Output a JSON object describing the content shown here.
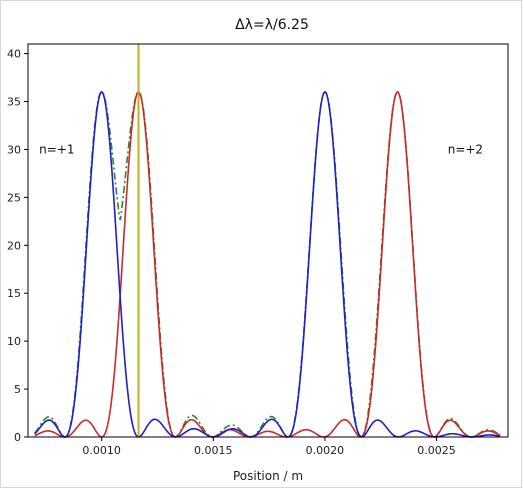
{
  "chart_data": {
    "type": "line",
    "title": "Δλ=λ/6.25",
    "xlabel": "Position / m",
    "ylabel": "",
    "xlim": [
      0.00067,
      0.00282
    ],
    "ylim": [
      0,
      41
    ],
    "xticks": [
      0.001,
      0.0015,
      0.002,
      0.0025
    ],
    "xtick_labels": [
      "0.0010",
      "0.0015",
      "0.0020",
      "0.0025"
    ],
    "yticks": [
      0,
      5,
      10,
      15,
      20,
      25,
      30,
      35,
      40
    ],
    "ytick_labels": [
      "0",
      "5",
      "10",
      "15",
      "20",
      "25",
      "30",
      "35",
      "40"
    ],
    "grid": false,
    "annotations": [
      {
        "text": "n=+1",
        "x": 0.00072,
        "y": 30
      },
      {
        "text": "n=+2",
        "x": 0.00255,
        "y": 30
      }
    ],
    "vertical_line": {
      "x": 0.001165,
      "color": "#bfb11a"
    },
    "series": [
      {
        "color": "#1f1fd0",
        "style": "solid",
        "peaks": [
          {
            "x": 0.001,
            "height": 36
          },
          {
            "x": 0.002,
            "height": 36
          }
        ],
        "width": 0.000165
      },
      {
        "color": "#cc2a2a",
        "style": "solid",
        "peaks": [
          {
            "x": 0.001165,
            "height": 36
          },
          {
            "x": 0.002325,
            "height": 36
          }
        ],
        "width": 0.000165
      },
      {
        "color": "#2a8a2a",
        "style": "dashdot",
        "sum_of": [
          0,
          1
        ]
      }
    ]
  }
}
